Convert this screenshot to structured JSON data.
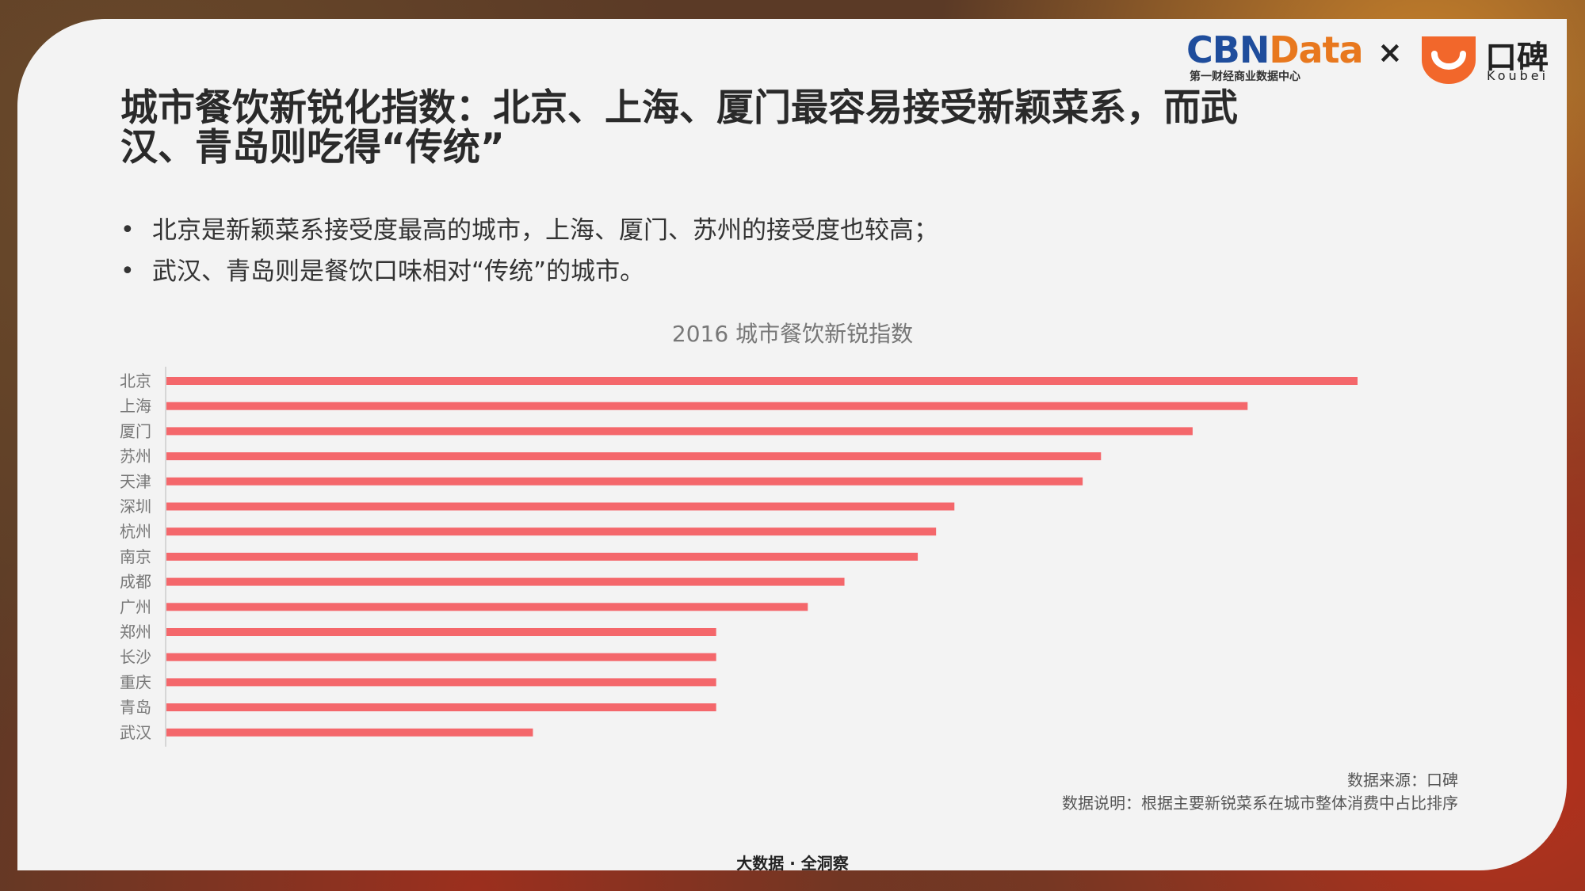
{
  "header": {
    "cbn_logo_part1": "CBN",
    "cbn_logo_part2": "Data",
    "cbn_sub": "第一财经商业数据中心",
    "times": "×",
    "koubei_text": "口碑",
    "koubei_sub": "Koubei"
  },
  "title": "城市餐饮新锐化指数：北京、上海、厦门最容易接受新颖菜系，而武汉、青岛则吃得“传统”",
  "bullets": [
    "北京是新颖菜系接受度最高的城市，上海、厦门、苏州的接受度也较高；",
    "武汉、青岛则是餐饮口味相对“传统”的城市。"
  ],
  "bullet_symbol": "•",
  "chart_data": {
    "type": "bar",
    "orientation": "horizontal",
    "title": "2016  城市餐饮新锐指数",
    "categories": [
      "北京",
      "上海",
      "厦门",
      "苏州",
      "天津",
      "深圳",
      "杭州",
      "南京",
      "成都",
      "广州",
      "郑州",
      "长沙",
      "重庆",
      "青岛",
      "武汉"
    ],
    "values": [
      65,
      59,
      56,
      51,
      50,
      43,
      42,
      41,
      37,
      35,
      30,
      30,
      30,
      30,
      20
    ],
    "xlim": [
      0,
      65
    ],
    "bar_color": "#f4676b",
    "axis_color": "#cccccc",
    "grid": false,
    "legend": "none"
  },
  "notes": {
    "source": "数据来源：口碑",
    "description": "数据说明：根据主要新锐菜系在城市整体消费中占比排序"
  },
  "footer": "大数据 · 全洞察"
}
